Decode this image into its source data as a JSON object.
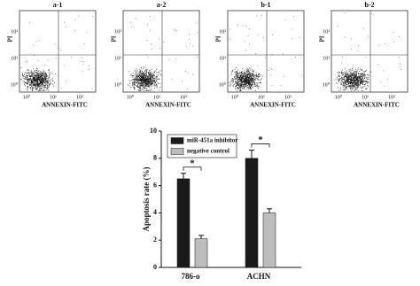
{
  "flow_panels": [
    "a-1",
    "a-2",
    "b-1",
    "b-2"
  ],
  "flow_axes": {
    "x_label": "ANNEXIN-FITC",
    "y_label": "PI",
    "x_ticks": [
      "10⁰",
      "10¹",
      "10²"
    ],
    "y_ticks": [
      "10⁰",
      "10¹",
      "10²"
    ]
  },
  "chart_data": {
    "type": "bar",
    "y_label": "Apoptosis rate (%)",
    "categories": [
      "786-o",
      "ACHN"
    ],
    "series": [
      {
        "name": "miR-451a inhibitor",
        "color": "#1a1a1a",
        "values": [
          6.5,
          8.0
        ],
        "errors": [
          0.4,
          0.6
        ]
      },
      {
        "name": "negative control",
        "color": "#bdbdbd",
        "values": [
          2.1,
          4.0
        ],
        "errors": [
          0.25,
          0.3
        ]
      }
    ],
    "annotations": [
      "*",
      "*"
    ],
    "ylim": [
      0,
      10
    ],
    "yticks": [
      0,
      2,
      4,
      6,
      8,
      10
    ],
    "grid": false
  }
}
